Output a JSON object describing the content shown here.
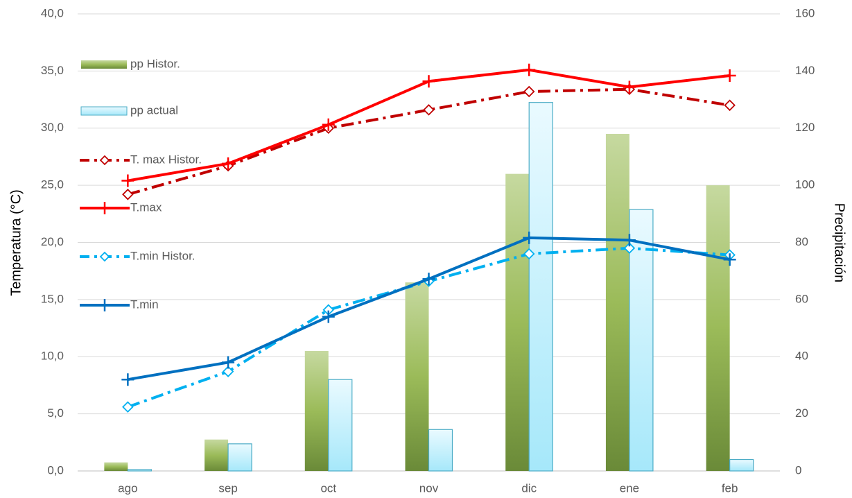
{
  "chart_data": {
    "type": "combo",
    "y_label": "Temperatura (°C)",
    "y2_label": "Precipitación",
    "categories": [
      "ago",
      "sep",
      "oct",
      "nov",
      "dic",
      "ene",
      "feb"
    ],
    "ylim": [
      0,
      40
    ],
    "yticks": [
      {
        "value": 0,
        "label": "0,0"
      },
      {
        "value": 5,
        "label": "5,0"
      },
      {
        "value": 10,
        "label": "10,0"
      },
      {
        "value": 15,
        "label": "15,0"
      },
      {
        "value": 20,
        "label": "20,0"
      },
      {
        "value": 25,
        "label": "25,0"
      },
      {
        "value": 30,
        "label": "30,0"
      },
      {
        "value": 35,
        "label": "35,0"
      },
      {
        "value": 40,
        "label": "40,0"
      }
    ],
    "y2lim": [
      0,
      160
    ],
    "y2ticks": [
      0,
      20,
      40,
      60,
      80,
      100,
      120,
      140,
      160
    ],
    "grid": true,
    "legend": "left",
    "series": [
      {
        "name": "pp Histor.",
        "type": "bar",
        "axis": "y2",
        "color": "#8faf52",
        "values": [
          3,
          11,
          42,
          66,
          104,
          118,
          100
        ]
      },
      {
        "name": "pp actual",
        "type": "bar",
        "axis": "y2",
        "color": "#4bacc6",
        "values": [
          0.5,
          9.5,
          32,
          14.5,
          129,
          91.5,
          4
        ]
      },
      {
        "name": "T. max Histor.",
        "type": "line",
        "color": "#c00000",
        "dashed": true,
        "marker": "diamond",
        "values": [
          24.2,
          26.7,
          30.0,
          31.6,
          33.2,
          33.4,
          32.0
        ]
      },
      {
        "name": "T.max",
        "type": "line",
        "color": "#ff0000",
        "dashed": false,
        "marker": "plus",
        "values": [
          25.4,
          26.9,
          30.3,
          34.1,
          35.1,
          33.6,
          34.6
        ]
      },
      {
        "name": "T.min Histor.",
        "type": "line",
        "color": "#00b0f0",
        "dashed": true,
        "marker": "diamond",
        "values": [
          5.6,
          8.7,
          14.1,
          16.6,
          19.0,
          19.5,
          18.9
        ]
      },
      {
        "name": "T.min",
        "type": "line",
        "color": "#0070c0",
        "dashed": false,
        "marker": "plus",
        "values": [
          8.0,
          9.5,
          13.5,
          16.8,
          20.4,
          20.2,
          18.5
        ]
      }
    ]
  }
}
